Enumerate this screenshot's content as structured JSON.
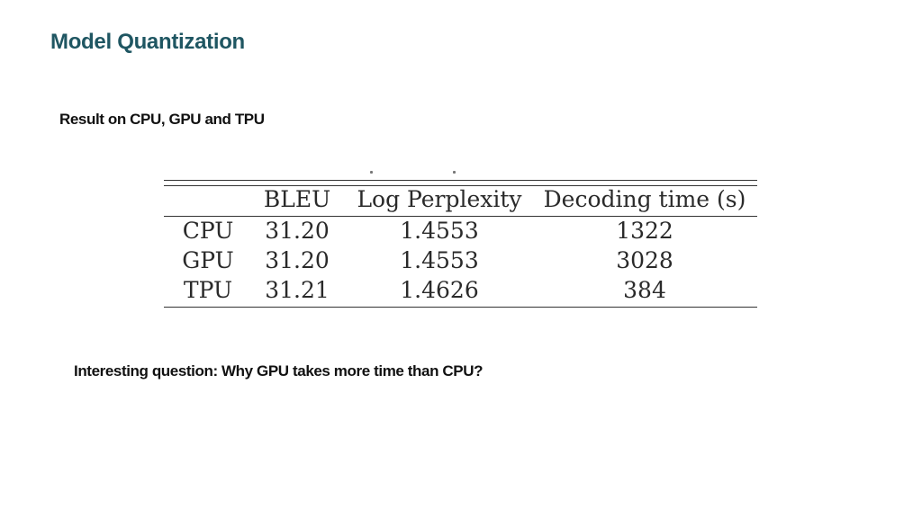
{
  "slide": {
    "title": "Model Quantization",
    "subtitle": "Result on CPU, GPU and TPU",
    "question": "Interesting question: Why GPU takes more time than CPU?"
  },
  "table": {
    "headers": [
      "",
      "BLEU",
      "Log Perplexity",
      "Decoding time (s)"
    ],
    "rows": [
      [
        "CPU",
        "31.20",
        "1.4553",
        "1322"
      ],
      [
        "GPU",
        "31.20",
        "1.4553",
        "3028"
      ],
      [
        "TPU",
        "31.21",
        "1.4626",
        "384"
      ]
    ]
  },
  "colors": {
    "title": "#1f5662",
    "text": "#111111"
  }
}
